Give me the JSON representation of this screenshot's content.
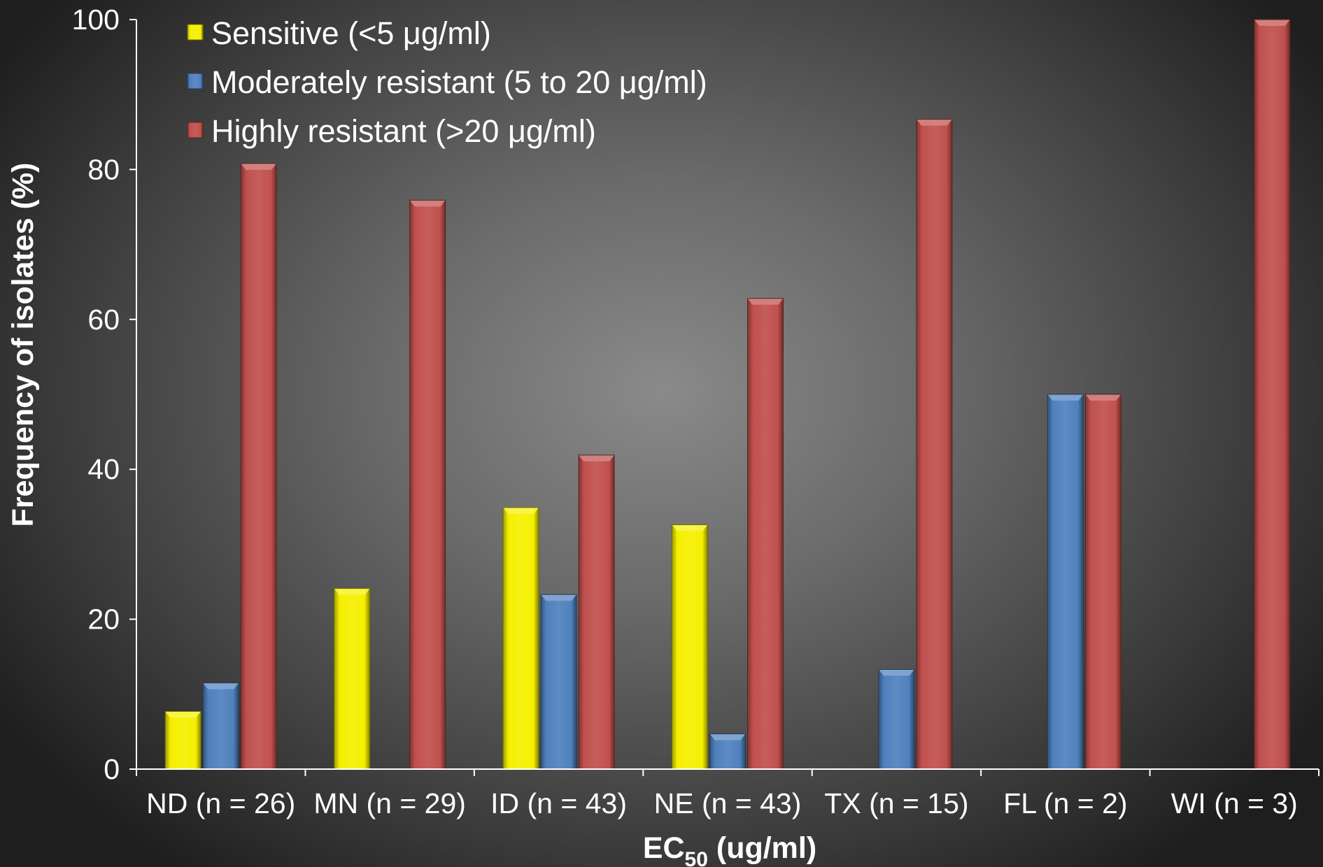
{
  "chart_data": {
    "type": "bar",
    "title": "",
    "xlabel_main": "EC",
    "xlabel_sub": "50",
    "xlabel_rest": " (ug/ml)",
    "ylabel": "Frequency of isolates (%)",
    "ylim": [
      0,
      100
    ],
    "yticks": [
      0,
      20,
      40,
      60,
      80,
      100
    ],
    "categories": [
      "ND (n = 26)",
      "MN (n = 29)",
      "ID (n = 43)",
      "NE (n = 43)",
      "TX (n = 15)",
      "FL (n = 2)",
      "WI (n = 3)"
    ],
    "series": [
      {
        "name": "Sensitive (<5 μg/ml)",
        "color": "#f5f000",
        "values": [
          7.7,
          24.1,
          34.9,
          32.6,
          0,
          0,
          0
        ]
      },
      {
        "name": "Moderately resistant (5 to 20 μg/ml)",
        "color": "#4f81bd",
        "values": [
          11.5,
          0,
          23.3,
          4.7,
          13.3,
          50,
          0
        ]
      },
      {
        "name": "Highly resistant (>20 μg/ml)",
        "color": "#c0504d",
        "values": [
          80.8,
          75.9,
          41.9,
          62.8,
          86.7,
          50,
          100
        ]
      }
    ],
    "legend_position": "top-left",
    "grid": false
  }
}
